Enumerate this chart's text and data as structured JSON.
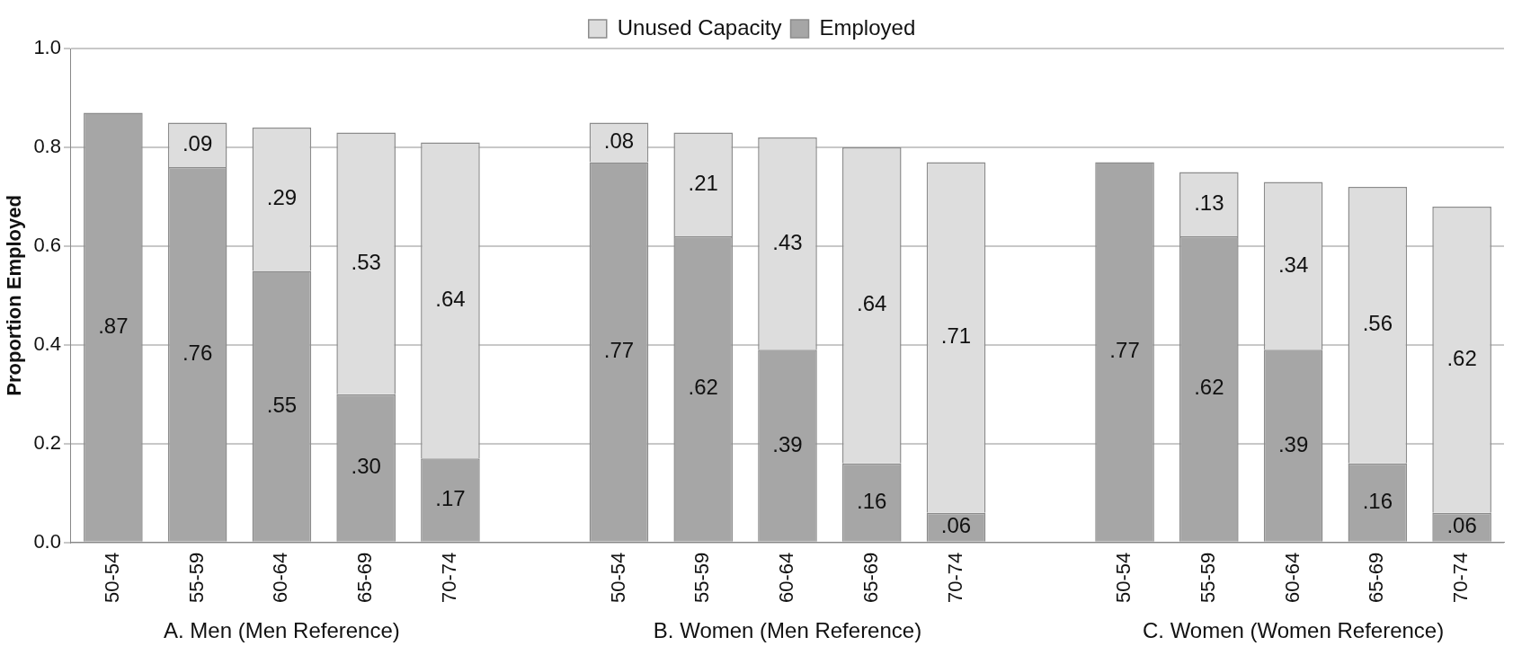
{
  "chart_data": {
    "type": "bar",
    "stacked": true,
    "ylabel": "Proportion Employed",
    "categories": [
      "50-54",
      "55-59",
      "60-64",
      "65-69",
      "70-74",
      null,
      "50-54",
      "55-59",
      "60-64",
      "65-69",
      "70-74",
      null,
      "50-54",
      "55-59",
      "60-64",
      "65-69",
      "70-74"
    ],
    "series": [
      {
        "name": "Employed",
        "color": "#a6a6a6",
        "values": [
          0.87,
          0.76,
          0.55,
          0.3,
          0.17,
          null,
          0.77,
          0.62,
          0.39,
          0.16,
          0.06,
          null,
          0.77,
          0.62,
          0.39,
          0.16,
          0.06
        ],
        "value_labels": [
          ".87",
          ".76",
          ".55",
          ".30",
          ".17",
          null,
          ".77",
          ".62",
          ".39",
          ".16",
          ".06",
          null,
          ".77",
          ".62",
          ".39",
          ".16",
          ".06"
        ]
      },
      {
        "name": "Unused Capacity",
        "color": "#dddddd",
        "values": [
          null,
          0.09,
          0.29,
          0.53,
          0.64,
          null,
          0.08,
          0.21,
          0.43,
          0.64,
          0.71,
          null,
          null,
          0.13,
          0.34,
          0.56,
          0.62
        ],
        "value_labels": [
          null,
          ".09",
          ".29",
          ".53",
          ".64",
          null,
          ".08",
          ".21",
          ".43",
          ".64",
          ".71",
          null,
          null,
          ".13",
          ".34",
          ".56",
          ".62"
        ]
      }
    ],
    "ylim": [
      0,
      1
    ],
    "yticks": [
      {
        "value": 0,
        "label": "0.0"
      },
      {
        "value": 0.2,
        "label": "0.2"
      },
      {
        "value": 0.4,
        "label": "0.4"
      },
      {
        "value": 0.6,
        "label": "0.6"
      },
      {
        "value": 0.8,
        "label": "0.8"
      },
      {
        "value": 1,
        "label": "1.0"
      }
    ],
    "grid": "y",
    "legend": "top",
    "annotations": [
      "A. Men (Men Reference)",
      "B. Women (Men Reference)",
      "C. Women (Women Reference)"
    ]
  }
}
